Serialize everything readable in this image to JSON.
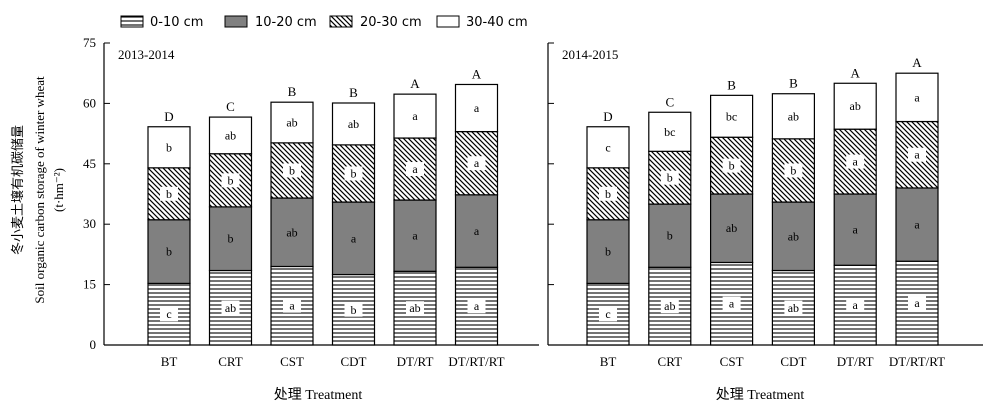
{
  "chart_data": {
    "type": "bar",
    "stacked": true,
    "legend": [
      "0-10 cm",
      "10-20 cm",
      "20-30 cm",
      "30-40 cm"
    ],
    "ylabel_zh": "冬小麦土壤有机碳储量",
    "ylabel_en": "Soil organic carbon storage of winter wheat",
    "ylabel_unit": "(t·hm⁻²)",
    "xlabel": "处理 Treatment",
    "ylim": [
      0,
      75
    ],
    "yticks": [
      "0",
      "15",
      "30",
      "45",
      "60",
      "75"
    ],
    "categories": [
      "BT",
      "CRT",
      "CST",
      "CDT",
      "DT/RT",
      "DT/RT/RT"
    ],
    "panels": [
      {
        "label": "2013-2014",
        "series": [
          {
            "name": "0-10 cm",
            "values": [
              15.3,
              18.5,
              19.5,
              17.5,
              18.3,
              19.3
            ],
            "letters": [
              "c",
              "ab",
              "a",
              "b",
              "ab",
              "a"
            ]
          },
          {
            "name": "10-20 cm",
            "values": [
              15.8,
              15.8,
              17.0,
              18.0,
              17.7,
              18.0
            ],
            "letters": [
              "b",
              "b",
              "ab",
              "a",
              "a",
              "a"
            ]
          },
          {
            "name": "20-30 cm",
            "values": [
              12.9,
              13.2,
              13.7,
              14.2,
              15.4,
              15.7
            ],
            "letters": [
              "b",
              "b",
              "b",
              "b",
              "a",
              "a"
            ]
          },
          {
            "name": "30-40 cm",
            "values": [
              10.2,
              9.1,
              10.1,
              10.4,
              10.9,
              11.7
            ],
            "letters": [
              "b",
              "ab",
              "ab",
              "ab",
              "a",
              "a"
            ]
          }
        ],
        "totals": [
          "D",
          "C",
          "B",
          "B",
          "A",
          "A"
        ]
      },
      {
        "label": "2014-2015",
        "series": [
          {
            "name": "0-10 cm",
            "values": [
              15.3,
              19.3,
              20.5,
              18.5,
              19.8,
              20.8
            ],
            "letters": [
              "c",
              "ab",
              "a",
              "ab",
              "a",
              "a"
            ]
          },
          {
            "name": "10-20 cm",
            "values": [
              15.8,
              15.7,
              17.0,
              17.0,
              17.7,
              18.2
            ],
            "letters": [
              "b",
              "b",
              "ab",
              "ab",
              "a",
              "a"
            ]
          },
          {
            "name": "20-30 cm",
            "values": [
              12.9,
              13.1,
              14.1,
              15.7,
              16.1,
              16.5
            ],
            "letters": [
              "b",
              "b",
              "b",
              "b",
              "a",
              "a"
            ]
          },
          {
            "name": "30-40 cm",
            "values": [
              10.2,
              9.7,
              10.4,
              11.2,
              11.4,
              12.0
            ],
            "letters": [
              "c",
              "bc",
              "bc",
              "ab",
              "ab",
              "a"
            ]
          }
        ],
        "totals": [
          "D",
          "C",
          "B",
          "B",
          "A",
          "A"
        ]
      }
    ]
  }
}
